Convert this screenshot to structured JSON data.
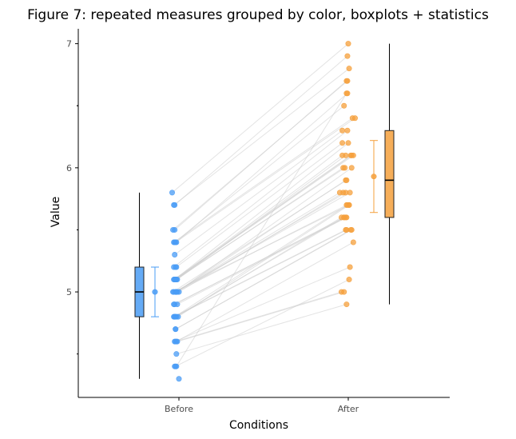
{
  "chart_data": {
    "type": "scatter",
    "title": "Figure 7: repeated measures grouped by color, boxplots + statistics",
    "xlabel": "Conditions",
    "ylabel": "Value",
    "categories": [
      "Before",
      "After"
    ],
    "yticks": [
      5,
      6,
      7
    ],
    "ylim": [
      4.15,
      7.12
    ],
    "grid": false,
    "legend": "none",
    "colors": {
      "Before": "#4a9cf5",
      "After": "#f5a03c",
      "lines": "#cccccc"
    },
    "series": [
      {
        "name": "Before",
        "jitter": [
          -0.08,
          -0.05,
          -0.06,
          -0.05,
          -0.07,
          -0.03,
          -0.05,
          -0.06,
          -0.04,
          -0.05,
          -0.06,
          -0.03,
          -0.05,
          -0.04,
          -0.04,
          -0.02,
          -0.06,
          -0.05,
          -0.03,
          -0.04,
          -0.02,
          -0.03,
          -0.07,
          -0.04,
          0.0,
          -0.03,
          -0.06,
          -0.04,
          -0.03,
          -0.05,
          -0.06,
          -0.02,
          -0.05,
          -0.01,
          -0.03,
          -0.04,
          -0.06,
          -0.05,
          -0.04,
          -0.04,
          -0.03,
          -0.05,
          -0.04,
          -0.02,
          -0.03,
          -0.04,
          -0.03,
          -0.05,
          0.0,
          -0.04
        ],
        "values": [
          5.8,
          5.7,
          5.7,
          5.5,
          5.5,
          5.4,
          5.4,
          5.4,
          5.4,
          5.3,
          5.2,
          5.2,
          5.1,
          5.1,
          5.1,
          5.1,
          5.1,
          5.1,
          5.1,
          5.1,
          5.0,
          5.0,
          5.0,
          5.0,
          5.0,
          5.0,
          5.0,
          5.0,
          5.0,
          4.9,
          4.9,
          4.9,
          4.8,
          4.8,
          4.8,
          4.8,
          4.8,
          4.8,
          4.7,
          4.7,
          4.6,
          4.6,
          4.6,
          4.6,
          4.5,
          4.4,
          4.4,
          4.4,
          4.3,
          5.2
        ]
      },
      {
        "name": "After",
        "jitter": [
          0.0,
          -0.01,
          0.01,
          -0.02,
          -0.01,
          -0.01,
          -0.05,
          0.05,
          0.08,
          -0.07,
          -0.01,
          -0.07,
          0.0,
          0.04,
          -0.07,
          -0.03,
          0.03,
          0.06,
          -0.06,
          -0.04,
          0.04,
          -0.03,
          -0.02,
          0.02,
          -0.06,
          -0.03,
          0.01,
          -0.1,
          -0.02,
          -0.05,
          -0.03,
          -0.02,
          -0.01,
          0.01,
          -0.08,
          -0.05,
          -0.03,
          -0.02,
          0.04,
          0.03,
          0.06,
          0.02,
          -0.08,
          -0.05,
          -0.02,
          0.01,
          -0.02
        ],
        "values": [
          7.0,
          6.9,
          6.8,
          6.7,
          6.7,
          6.6,
          6.5,
          6.4,
          6.4,
          6.3,
          6.3,
          6.2,
          6.2,
          6.1,
          6.1,
          6.1,
          6.1,
          6.1,
          6.0,
          6.0,
          6.0,
          5.9,
          5.9,
          5.8,
          5.8,
          5.8,
          5.7,
          5.8,
          5.7,
          5.6,
          5.6,
          5.6,
          5.7,
          5.7,
          5.6,
          5.6,
          5.5,
          5.5,
          5.5,
          5.5,
          5.4,
          5.2,
          5.0,
          5.0,
          4.9,
          5.1,
          6.6
        ]
      }
    ],
    "boxplots": [
      {
        "name": "Before",
        "whisker_low": 4.3,
        "q1": 4.8,
        "median": 5.0,
        "q3": 5.2,
        "whisker_high": 5.8
      },
      {
        "name": "After",
        "whisker_low": 4.9,
        "q1": 5.6,
        "median": 5.9,
        "q3": 6.3,
        "whisker_high": 7.0
      }
    ],
    "statistics": [
      {
        "name": "Before",
        "mean": 5.0,
        "ci_low": 4.8,
        "ci_high": 5.2
      },
      {
        "name": "After",
        "mean": 5.93,
        "ci_low": 5.64,
        "ci_high": 6.22
      }
    ]
  }
}
